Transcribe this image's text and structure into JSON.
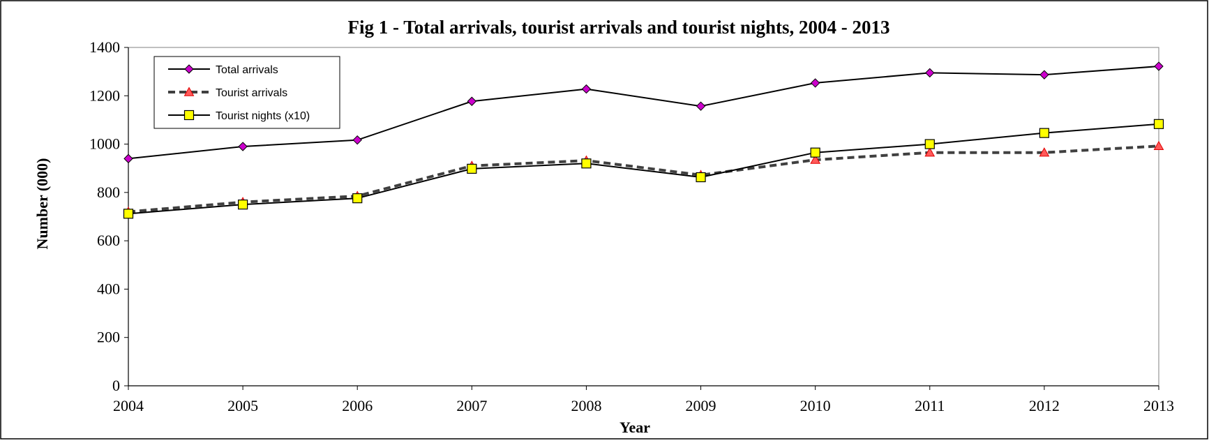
{
  "chart_data": {
    "type": "line",
    "title": "Fig 1 - Total arrivals, tourist arrivals and tourist nights, 2004 - 2013",
    "xlabel": "Year",
    "ylabel": "Number (000)",
    "x": [
      "2004",
      "2005",
      "2006",
      "2007",
      "2008",
      "2009",
      "2010",
      "2011",
      "2012",
      "2013"
    ],
    "yticks": [
      "0",
      "200",
      "400",
      "600",
      "800",
      "1000",
      "1200",
      "1400"
    ],
    "ylim": [
      0,
      1400
    ],
    "grid": false,
    "legend_position": "top-left",
    "series": [
      {
        "name": "Total arrivals",
        "values": [
          940,
          990,
          1017,
          1177,
          1228,
          1157,
          1253,
          1295,
          1287,
          1322
        ],
        "line_color": "#000000",
        "line_style": "solid",
        "marker": "diamond",
        "marker_color": "#cc00cc"
      },
      {
        "name": "Tourist arrivals",
        "values": [
          720,
          760,
          785,
          910,
          932,
          872,
          935,
          965,
          965,
          992
        ],
        "line_color": "#404040",
        "line_style": "dashed",
        "marker": "triangle",
        "marker_color": "#ff5a5a"
      },
      {
        "name": "Tourist nights (x10)",
        "values": [
          712,
          750,
          776,
          898,
          920,
          863,
          965,
          1000,
          1046,
          1083
        ],
        "line_color": "#000000",
        "line_style": "solid",
        "marker": "square",
        "marker_color": "#ffff00"
      }
    ]
  }
}
